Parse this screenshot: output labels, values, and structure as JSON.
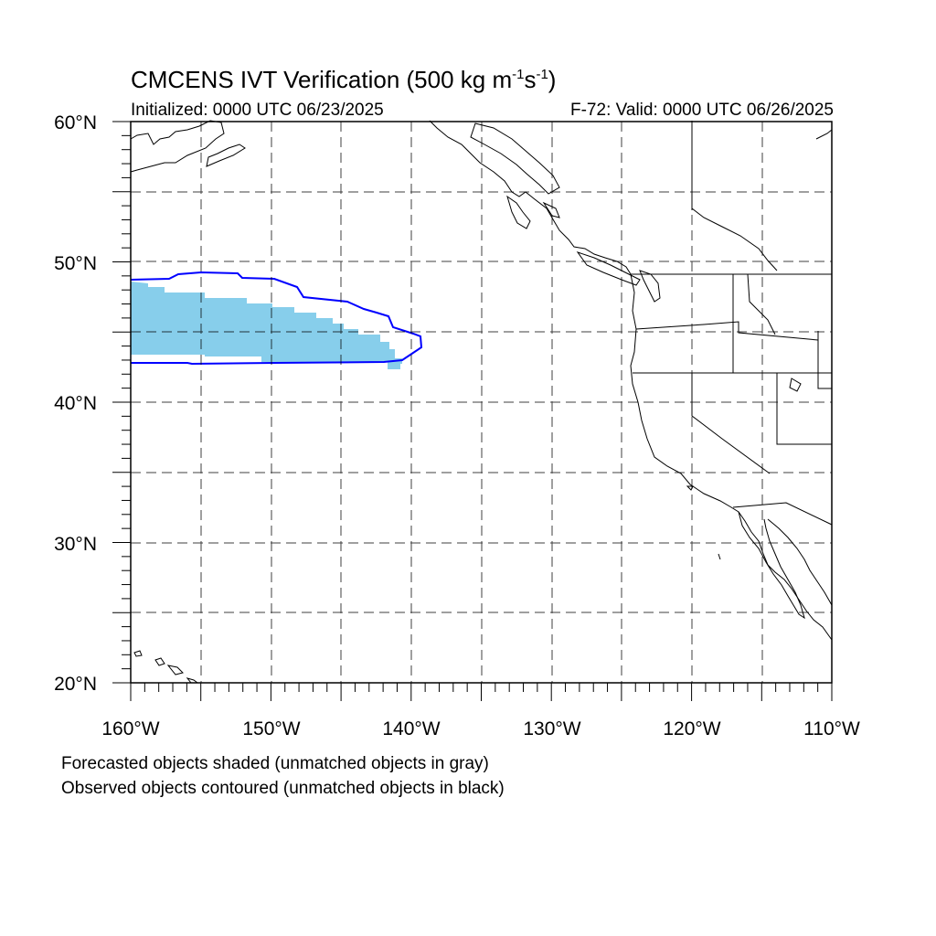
{
  "title": {
    "main": "CMCENS IVT Verification (500 kg m",
    "exp1": "-1",
    "mid": "s",
    "exp2": "-1",
    "end": ")"
  },
  "initialized": "Initialized: 0000 UTC 06/23/2025",
  "valid": "F-72: Valid: 0000 UTC 06/26/2025",
  "lat_labels": [
    "60°N",
    "50°N",
    "40°N",
    "30°N",
    "20°N"
  ],
  "lon_labels": [
    "160°W",
    "150°W",
    "140°W",
    "130°W",
    "120°W",
    "110°W"
  ],
  "notes": {
    "forecast": "Forecasted objects shaded (unmatched objects in gray)",
    "observed": "Observed objects contoured (unmatched objects in black)"
  },
  "map": {
    "lon_range": [
      -160,
      -110
    ],
    "lat_range": [
      20,
      60
    ],
    "grid_spacing_deg": 5,
    "forecast_fill_color": "#87ceeb",
    "observed_contour_color": "#0000ff"
  }
}
